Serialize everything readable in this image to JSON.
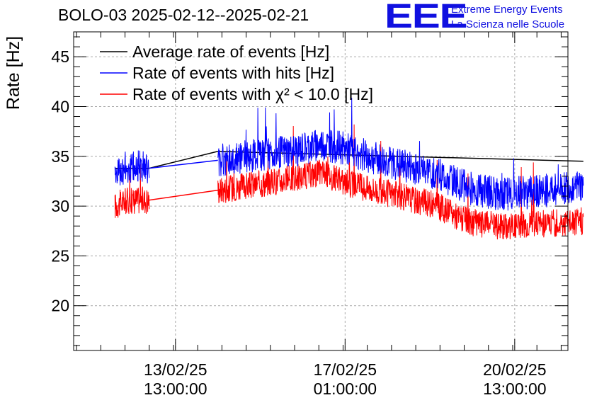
{
  "title": "BOLO-03 2025-02-12--2025-02-21",
  "logo": {
    "mark": "EEE",
    "line1": "Extreme Energy Events",
    "line2": "La Scienza nelle Scuole",
    "color": "#1010e0"
  },
  "chart_data": {
    "type": "line",
    "ylabel": "Rate [Hz]",
    "xlabel": "",
    "ylim": [
      15.5,
      47.5
    ],
    "xlim_days": [
      -1.56,
      8.64
    ],
    "yticks": [
      "20",
      "25",
      "30",
      "35",
      "40",
      "45"
    ],
    "xticks": [
      {
        "date": "13/02/25",
        "time": "13:00:00"
      },
      {
        "date": "17/02/25",
        "time": "01:00:00"
      },
      {
        "date": "20/02/25",
        "time": "13:00:00"
      }
    ],
    "grid": true,
    "legend_position": "top-left",
    "series": [
      {
        "name": "Average rate of events [Hz]",
        "color": "#000000",
        "segments": [
          {
            "x": [
              "12/02/25 07:00",
              "13/02/25 00:00"
            ],
            "y": [
              33.8,
              33.8
            ]
          },
          {
            "x": [
              "14/02/25 10:00",
              "21/02/25 23:00"
            ],
            "y": [
              35.5,
              34.5
            ]
          }
        ]
      },
      {
        "name": "Rate of events with hits [Hz]",
        "color": "#0000ff",
        "segments": [
          {
            "x": [
              "12/02/25 07:00",
              "12/02/25 12:00",
              "12/02/25 18:00",
              "13/02/25 00:00"
            ],
            "y": [
              33.2,
              34.0,
              34.0,
              33.8
            ]
          },
          {
            "x": [
              "14/02/25 10:00",
              "15/02/25 06:00",
              "16/02/25 00:00",
              "16/02/25 14:00",
              "17/02/25 00:00",
              "17/02/25 20:00",
              "18/02/25 22:00",
              "19/02/25 14:00",
              "20/02/25 06:00",
              "20/02/25 20:00",
              "21/02/25 12:00",
              "21/02/25 23:00"
            ],
            "y": [
              34.6,
              35.1,
              35.6,
              36.2,
              35.8,
              34.5,
              33.3,
              31.8,
              31.2,
              31.4,
              31.7,
              31.9
            ]
          }
        ]
      },
      {
        "name": "Rate of events with χ² < 10.0 [Hz]",
        "color": "#ff0000",
        "segments": [
          {
            "x": [
              "12/02/25 07:00",
              "12/02/25 12:00",
              "12/02/25 18:00",
              "13/02/25 00:00"
            ],
            "y": [
              30.0,
              30.5,
              30.6,
              30.6
            ]
          },
          {
            "x": [
              "14/02/25 10:00",
              "15/02/25 06:00",
              "16/02/25 00:00",
              "16/02/25 14:00",
              "17/02/25 00:00",
              "17/02/25 20:00",
              "18/02/25 22:00",
              "19/02/25 14:00",
              "20/02/25 06:00",
              "20/02/25 20:00",
              "21/02/25 12:00",
              "21/02/25 23:00"
            ],
            "y": [
              31.6,
              32.2,
              32.8,
              33.4,
              32.4,
              31.4,
              30.1,
              28.4,
              28.0,
              28.2,
              28.3,
              28.5
            ]
          }
        ]
      }
    ]
  }
}
